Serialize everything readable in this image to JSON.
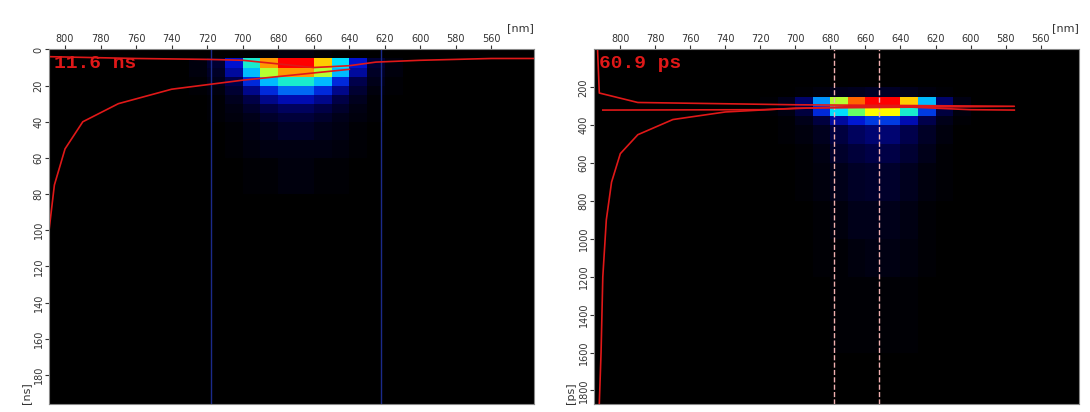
{
  "chart_data": [
    {
      "type": "heatmap",
      "annotation": "11.6 ns",
      "xlabel": "[nm]",
      "ylabel": "[ns]",
      "xlim": [
        809,
        536
      ],
      "xticks": [
        800,
        780,
        760,
        740,
        720,
        700,
        680,
        660,
        640,
        620,
        600,
        580,
        560
      ],
      "ylim": [
        196,
        0
      ],
      "yticks": [
        0,
        20,
        40,
        60,
        80,
        100,
        120,
        140,
        160,
        180
      ],
      "x_edges": [
        610,
        620,
        630,
        640,
        650,
        660,
        670,
        680,
        690,
        700,
        710,
        720,
        730
      ],
      "y_edges": [
        0,
        5,
        10,
        15,
        20,
        25,
        30,
        35,
        40,
        50,
        60,
        80
      ],
      "cells": [
        [
          0,
          0,
          0,
          0,
          1,
          2,
          2,
          1,
          0,
          0,
          0,
          0
        ],
        [
          2,
          8,
          25,
          50,
          80,
          100,
          100,
          85,
          55,
          25,
          8,
          2
        ],
        [
          2,
          6,
          20,
          45,
          70,
          85,
          85,
          70,
          45,
          20,
          6,
          2
        ],
        [
          1,
          4,
          12,
          28,
          45,
          55,
          55,
          45,
          28,
          12,
          4,
          1
        ],
        [
          1,
          2,
          8,
          18,
          28,
          35,
          35,
          28,
          18,
          8,
          2,
          1
        ],
        [
          0,
          1,
          5,
          11,
          18,
          22,
          22,
          18,
          11,
          5,
          1,
          0
        ],
        [
          0,
          1,
          3,
          7,
          11,
          14,
          14,
          11,
          7,
          3,
          1,
          0
        ],
        [
          0,
          1,
          2,
          4,
          7,
          9,
          9,
          7,
          4,
          2,
          1,
          0
        ],
        [
          0,
          0,
          1,
          3,
          4,
          6,
          6,
          4,
          3,
          1,
          0,
          0
        ],
        [
          0,
          0,
          1,
          2,
          3,
          3,
          3,
          3,
          2,
          1,
          0,
          0
        ],
        [
          0,
          0,
          0,
          1,
          1,
          2,
          2,
          1,
          1,
          0,
          0,
          0
        ]
      ],
      "crange": [
        0,
        100
      ],
      "cursors": {
        "x": [
          718,
          622
        ],
        "color": "#1a2a8a",
        "line_style": "solid"
      },
      "lines": [
        {
          "color": "#e01818",
          "x": [
            809,
            760,
            720,
            700,
            680,
            660,
            640,
            625,
            600,
            560,
            536
          ],
          "y": [
            4,
            5,
            5.5,
            6,
            8,
            10,
            9,
            7,
            6,
            5,
            5
          ]
        },
        {
          "color": "#e01818",
          "x": [
            640,
            670,
            700,
            740,
            770,
            790,
            800,
            806,
            809
          ],
          "y": [
            11,
            14,
            17,
            22,
            30,
            40,
            55,
            75,
            100
          ]
        }
      ]
    },
    {
      "type": "heatmap",
      "annotation": "60.9 ps",
      "xlabel": "[nm]",
      "ylabel": "[ps]",
      "xlim": [
        815,
        538
      ],
      "xticks": [
        800,
        780,
        760,
        740,
        720,
        700,
        680,
        660,
        640,
        620,
        600,
        580,
        560
      ],
      "ylim": [
        1870,
        0
      ],
      "yticks": [
        200,
        400,
        600,
        800,
        1000,
        1200,
        1400,
        1600,
        1800
      ],
      "x_edges": [
        600,
        610,
        620,
        630,
        640,
        650,
        660,
        670,
        680,
        690,
        700,
        710,
        720
      ],
      "y_edges": [
        0,
        200,
        250,
        300,
        350,
        400,
        500,
        600,
        800,
        1000,
        1200,
        1600
      ],
      "cells": [
        [
          0,
          0,
          0,
          0,
          0,
          0,
          0,
          0,
          0,
          0,
          0,
          0
        ],
        [
          0,
          1,
          2,
          4,
          6,
          6,
          5,
          4,
          2,
          1,
          0,
          0
        ],
        [
          3,
          15,
          45,
          80,
          100,
          100,
          90,
          70,
          40,
          15,
          4,
          1
        ],
        [
          2,
          10,
          30,
          55,
          75,
          75,
          65,
          50,
          28,
          10,
          3,
          1
        ],
        [
          1,
          4,
          12,
          22,
          30,
          30,
          26,
          20,
          10,
          4,
          1,
          0
        ],
        [
          0,
          2,
          6,
          12,
          16,
          16,
          14,
          10,
          5,
          2,
          1,
          0
        ],
        [
          0,
          1,
          4,
          8,
          11,
          11,
          9,
          7,
          3,
          1,
          0,
          0
        ],
        [
          0,
          1,
          2,
          5,
          7,
          7,
          6,
          4,
          2,
          1,
          0,
          0
        ],
        [
          0,
          0,
          1,
          3,
          4,
          4,
          4,
          2,
          1,
          0,
          0,
          0
        ],
        [
          0,
          0,
          1,
          2,
          3,
          3,
          2,
          1,
          1,
          0,
          0,
          0
        ],
        [
          0,
          0,
          0,
          1,
          1,
          1,
          1,
          1,
          0,
          0,
          0,
          0
        ]
      ],
      "crange": [
        0,
        100
      ],
      "cursors": {
        "x": [
          678,
          652
        ],
        "color": "#f0b0b0",
        "line_style": "dashed"
      },
      "lines": [
        {
          "color": "#e01818",
          "x": [
            813,
            812,
            790,
            700,
            575,
            700,
            740,
            770,
            790,
            800,
            805,
            808,
            810,
            811,
            812
          ],
          "y": [
            0,
            230,
            280,
            292,
            300,
            310,
            330,
            370,
            450,
            550,
            700,
            900,
            1200,
            1600,
            1870
          ]
        },
        {
          "color": "#e01818",
          "x": [
            810,
            720,
            700,
            680,
            660,
            640,
            620,
            600,
            575
          ],
          "y": [
            320,
            318,
            312,
            305,
            300,
            302,
            310,
            318,
            320
          ]
        }
      ]
    }
  ]
}
